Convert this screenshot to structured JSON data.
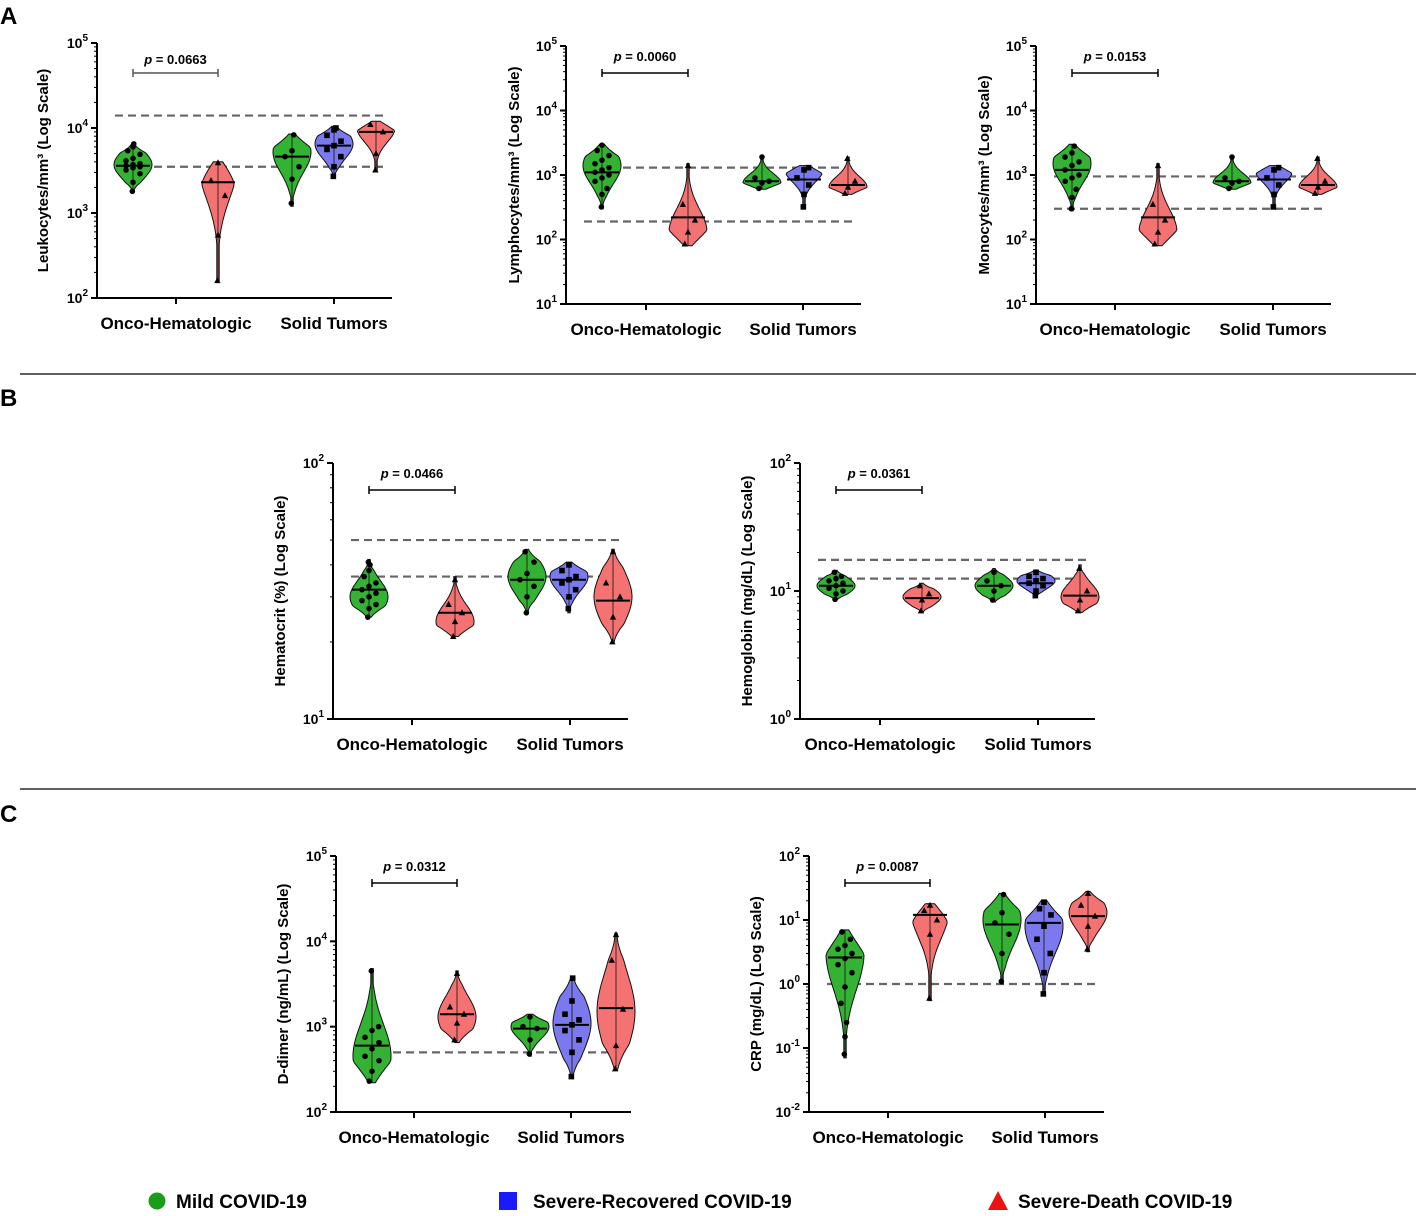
{
  "panel_letters": [
    "A",
    "B",
    "C"
  ],
  "legend": [
    {
      "label": "Mild COVID-19",
      "color": "#1a9e1a",
      "shape": "circle",
      "icon": "circle-marker-icon"
    },
    {
      "label": "Severe-Recovered COVID-19",
      "color": "#1a1aff",
      "shape": "square",
      "icon": "square-marker-icon"
    },
    {
      "label": "Severe-Death COVID-19",
      "color": "#ee1111",
      "shape": "triangle",
      "icon": "triangle-marker-icon"
    }
  ],
  "colors": {
    "mild_fill": "#33b233",
    "recovered_fill": "#7a7aee",
    "death_fill": "#f47272",
    "reference_line": "#666666"
  },
  "chart_data": [
    {
      "id": "leukocytes",
      "type": "violin",
      "panel": "A",
      "ylabel": "Leukocytes/mm³ (Log Scale)",
      "yscale": "log",
      "ylim_exp": [
        2,
        5
      ],
      "tick_exponents": [
        2,
        3,
        4,
        5
      ],
      "categories": [
        "Onco-Hematologic",
        "Solid Tumors"
      ],
      "reference_lines": [
        3500,
        14000
      ],
      "pvalue": {
        "text": "0.0663",
        "italic_only_p": true,
        "bold": false
      },
      "series": [
        {
          "name": "Mild COVID-19",
          "group": "Onco-Hematologic",
          "min": 1800,
          "max": 6500,
          "median": 3600,
          "mode": 3700,
          "points": [
            1800,
            2300,
            2900,
            3200,
            3400,
            3500,
            3600,
            3700,
            3800,
            4100,
            4400,
            4900,
            5400,
            6000,
            6500
          ]
        },
        {
          "name": "Severe-Death COVID-19",
          "group": "Onco-Hematologic",
          "min": 160,
          "max": 4000,
          "median": 2300,
          "mode": 3600,
          "points": [
            160,
            550,
            1600,
            2400,
            3900
          ]
        },
        {
          "name": "Mild COVID-19",
          "group": "Solid Tumors",
          "min": 1200,
          "max": 8500,
          "median": 4600,
          "mode": 5200,
          "points": [
            1300,
            2500,
            3500,
            4600,
            5400,
            8300
          ]
        },
        {
          "name": "Severe-Recovered COVID-19",
          "group": "Solid Tumors",
          "min": 2600,
          "max": 10500,
          "median": 6200,
          "mode": 6500,
          "points": [
            2700,
            3500,
            4600,
            5600,
            6200,
            7000,
            8200,
            9500,
            10000
          ]
        },
        {
          "name": "Severe-Death COVID-19",
          "group": "Solid Tumors",
          "min": 3100,
          "max": 12000,
          "median": 9000,
          "mode": 10000,
          "points": [
            3200,
            5000,
            9000,
            11000
          ]
        }
      ]
    },
    {
      "id": "lymphocytes",
      "type": "violin",
      "panel": "A",
      "ylabel": "Lymphocytes/mm³ (Log Scale)",
      "yscale": "log",
      "ylim_exp": [
        1,
        5
      ],
      "tick_exponents": [
        1,
        2,
        3,
        4,
        5
      ],
      "categories": [
        "Onco-Hematologic",
        "Solid Tumors"
      ],
      "reference_lines": [
        190,
        1300
      ],
      "pvalue": {
        "text": "0.0060",
        "italic_only_p": false,
        "bold": true
      },
      "series": [
        {
          "name": "Mild COVID-19",
          "group": "Onco-Hematologic",
          "min": 300,
          "max": 3000,
          "median": 1100,
          "mode": 1400,
          "points": [
            320,
            500,
            620,
            800,
            900,
            1000,
            1100,
            1200,
            1300,
            1500,
            1700,
            2000,
            2400,
            2900
          ]
        },
        {
          "name": "Severe-Death COVID-19",
          "group": "Onco-Hematologic",
          "min": 80,
          "max": 1500,
          "median": 220,
          "mode": 130,
          "points": [
            85,
            130,
            200,
            350,
            1400
          ]
        },
        {
          "name": "Mild COVID-19",
          "group": "Solid Tumors",
          "min": 600,
          "max": 2000,
          "median": 800,
          "mode": 750,
          "points": [
            620,
            750,
            800,
            900,
            1900
          ]
        },
        {
          "name": "Severe-Recovered COVID-19",
          "group": "Solid Tumors",
          "min": 300,
          "max": 1400,
          "median": 850,
          "mode": 1200,
          "points": [
            320,
            500,
            700,
            900,
            1200,
            1300
          ]
        },
        {
          "name": "Severe-Death COVID-19",
          "group": "Solid Tumors",
          "min": 500,
          "max": 1900,
          "median": 700,
          "mode": 650,
          "points": [
            520,
            650,
            800,
            1800
          ]
        }
      ]
    },
    {
      "id": "monocytes",
      "type": "violin",
      "panel": "A",
      "ylabel": "Monocytes/mm³ (Log Scale)",
      "yscale": "log",
      "ylim_exp": [
        1,
        5
      ],
      "tick_exponents": [
        1,
        2,
        3,
        4,
        5
      ],
      "categories": [
        "Onco-Hematologic",
        "Solid Tumors"
      ],
      "reference_lines": [
        300,
        950
      ],
      "pvalue": {
        "text": "0.0153",
        "italic_only_p": false,
        "bold": true
      },
      "series": [
        {
          "name": "Mild COVID-19",
          "group": "Onco-Hematologic",
          "min": 280,
          "max": 3000,
          "median": 1200,
          "mode": 1500,
          "points": [
            300,
            450,
            600,
            800,
            900,
            1000,
            1200,
            1400,
            1600,
            1900,
            2200,
            2800
          ]
        },
        {
          "name": "Severe-Death COVID-19",
          "group": "Onco-Hematologic",
          "min": 80,
          "max": 1500,
          "median": 220,
          "mode": 130,
          "points": [
            85,
            130,
            200,
            350,
            1400
          ]
        },
        {
          "name": "Mild COVID-19",
          "group": "Solid Tumors",
          "min": 600,
          "max": 2000,
          "median": 800,
          "mode": 750,
          "points": [
            620,
            750,
            800,
            900,
            1900
          ]
        },
        {
          "name": "Severe-Recovered COVID-19",
          "group": "Solid Tumors",
          "min": 300,
          "max": 1400,
          "median": 850,
          "mode": 1200,
          "points": [
            320,
            500,
            700,
            900,
            1200,
            1300
          ]
        },
        {
          "name": "Severe-Death COVID-19",
          "group": "Solid Tumors",
          "min": 500,
          "max": 1900,
          "median": 700,
          "mode": 650,
          "points": [
            520,
            650,
            800,
            1800
          ]
        }
      ]
    },
    {
      "id": "hematocrit",
      "type": "violin",
      "panel": "B",
      "ylabel": "Hematocrit (%) (Log Scale)",
      "yscale": "log",
      "ylim_exp": [
        1,
        2
      ],
      "tick_exponents": [
        1,
        2
      ],
      "categories": [
        "Onco-Hematologic",
        "Solid Tumors"
      ],
      "reference_lines": [
        36,
        50
      ],
      "pvalue": {
        "text": "0.0466",
        "italic_only_p": false,
        "bold": true
      },
      "series": [
        {
          "name": "Mild COVID-19",
          "group": "Onco-Hematologic",
          "min": 25,
          "max": 42,
          "median": 32,
          "mode": 30,
          "points": [
            25,
            27,
            28,
            29,
            30,
            31,
            32,
            33,
            34,
            36,
            38,
            40,
            41
          ]
        },
        {
          "name": "Severe-Death COVID-19",
          "group": "Onco-Hematologic",
          "min": 21,
          "max": 36,
          "median": 26,
          "mode": 24,
          "points": [
            21,
            24,
            26,
            28,
            35
          ]
        },
        {
          "name": "Mild COVID-19",
          "group": "Solid Tumors",
          "min": 26,
          "max": 46,
          "median": 35,
          "mode": 36,
          "points": [
            26,
            30,
            33,
            35,
            37,
            41,
            45
          ]
        },
        {
          "name": "Severe-Recovered COVID-19",
          "group": "Solid Tumors",
          "min": 26,
          "max": 41,
          "median": 35,
          "mode": 36,
          "points": [
            27,
            30,
            32,
            34,
            35,
            36,
            38,
            40
          ]
        },
        {
          "name": "Severe-Death COVID-19",
          "group": "Solid Tumors",
          "min": 20,
          "max": 46,
          "median": 29,
          "mode": 30,
          "points": [
            20,
            25,
            30,
            34,
            45
          ]
        }
      ]
    },
    {
      "id": "hemoglobin",
      "type": "violin",
      "panel": "B",
      "ylabel": "Hemoglobin (mg/dL) (Log Scale)",
      "yscale": "log",
      "ylim_exp": [
        0,
        2
      ],
      "tick_exponents": [
        0,
        1,
        2
      ],
      "categories": [
        "Onco-Hematologic",
        "Solid Tumors"
      ],
      "reference_lines": [
        12.5,
        17.5
      ],
      "pvalue": {
        "text": "0.0361",
        "italic_only_p": false,
        "bold": true
      },
      "series": [
        {
          "name": "Mild COVID-19",
          "group": "Onco-Hematologic",
          "min": 8.5,
          "max": 14.5,
          "median": 11,
          "mode": 11,
          "points": [
            8.6,
            9.5,
            10,
            10.5,
            11,
            11.5,
            12,
            12.5,
            13,
            14
          ]
        },
        {
          "name": "Severe-Death COVID-19",
          "group": "Onco-Hematologic",
          "min": 6.8,
          "max": 11.5,
          "median": 8.8,
          "mode": 9,
          "points": [
            7,
            8.5,
            9.5,
            11
          ]
        },
        {
          "name": "Mild COVID-19",
          "group": "Solid Tumors",
          "min": 8.2,
          "max": 15,
          "median": 11,
          "mode": 11,
          "points": [
            8.5,
            10,
            11,
            12,
            14
          ]
        },
        {
          "name": "Severe-Recovered COVID-19",
          "group": "Solid Tumors",
          "min": 9,
          "max": 14.5,
          "median": 11.5,
          "mode": 12,
          "points": [
            9.2,
            10,
            11,
            11.5,
            12,
            12.5,
            13,
            14
          ]
        },
        {
          "name": "Severe-Death COVID-19",
          "group": "Solid Tumors",
          "min": 6.8,
          "max": 16,
          "median": 9.2,
          "mode": 9,
          "points": [
            7,
            8.5,
            10,
            15
          ]
        }
      ]
    },
    {
      "id": "d_dimer",
      "type": "violin",
      "panel": "C",
      "ylabel": "D-dimer (ng/mL) (Log Scale)",
      "yscale": "log",
      "ylim_exp": [
        2,
        5
      ],
      "tick_exponents": [
        2,
        3,
        4,
        5
      ],
      "categories": [
        "Onco-Hematologic",
        "Solid Tumors"
      ],
      "reference_lines": [
        500
      ],
      "pvalue": {
        "text": "0.0312",
        "italic_only_p": false,
        "bold": true
      },
      "series": [
        {
          "name": "Mild COVID-19",
          "group": "Onco-Hematologic",
          "min": 220,
          "max": 4800,
          "median": 600,
          "mode": 450,
          "points": [
            230,
            300,
            400,
            450,
            550,
            650,
            750,
            900,
            1000,
            4500
          ]
        },
        {
          "name": "Severe-Death COVID-19",
          "group": "Onco-Hematologic",
          "min": 650,
          "max": 4500,
          "median": 1400,
          "mode": 1300,
          "points": [
            700,
            1100,
            1400,
            1700,
            4200
          ]
        },
        {
          "name": "Mild COVID-19",
          "group": "Solid Tumors",
          "min": 450,
          "max": 1400,
          "median": 950,
          "mode": 1000,
          "points": [
            480,
            700,
            950,
            1000,
            1300
          ]
        },
        {
          "name": "Severe-Recovered COVID-19",
          "group": "Solid Tumors",
          "min": 250,
          "max": 3800,
          "median": 1050,
          "mode": 1100,
          "points": [
            260,
            500,
            700,
            900,
            1050,
            1200,
            1400,
            2000,
            3700
          ]
        },
        {
          "name": "Severe-Death COVID-19",
          "group": "Solid Tumors",
          "min": 310,
          "max": 12500,
          "median": 1650,
          "mode": 1500,
          "points": [
            320,
            600,
            1600,
            6000,
            12000
          ]
        }
      ]
    },
    {
      "id": "crp",
      "type": "violin",
      "panel": "C",
      "ylabel": "CRP (mg/dL) (Log Scale)",
      "yscale": "log",
      "ylim_exp": [
        -2,
        2
      ],
      "tick_exponents": [
        -2,
        -1,
        0,
        1,
        2
      ],
      "categories": [
        "Onco-Hematologic",
        "Solid Tumors"
      ],
      "reference_lines": [
        1
      ],
      "pvalue": {
        "text": "0.0087",
        "italic_only_p": false,
        "bold": true
      },
      "series": [
        {
          "name": "Mild COVID-19",
          "group": "Onco-Hematologic",
          "min": 0.07,
          "max": 7,
          "median": 2.6,
          "mode": 3,
          "points": [
            0.08,
            0.15,
            0.25,
            0.5,
            0.9,
            1.5,
            2,
            2.5,
            3,
            3.5,
            4,
            5,
            6.5
          ]
        },
        {
          "name": "Severe-Death COVID-19",
          "group": "Onco-Hematologic",
          "min": 0.55,
          "max": 18,
          "median": 12,
          "mode": 14,
          "points": [
            0.6,
            6,
            10,
            14,
            17
          ]
        },
        {
          "name": "Mild COVID-19",
          "group": "Solid Tumors",
          "min": 1,
          "max": 26,
          "median": 8.5,
          "mode": 10,
          "points": [
            1.1,
            3,
            6,
            9,
            13,
            25
          ]
        },
        {
          "name": "Severe-Recovered COVID-19",
          "group": "Solid Tumors",
          "min": 0.65,
          "max": 20,
          "median": 9,
          "mode": 8,
          "points": [
            0.7,
            1.5,
            3,
            5,
            8,
            12,
            15,
            19
          ]
        },
        {
          "name": "Severe-Death COVID-19",
          "group": "Solid Tumors",
          "min": 3.2,
          "max": 28,
          "median": 11.5,
          "mode": 13,
          "points": [
            3.5,
            8,
            11.5,
            17,
            26
          ]
        }
      ]
    }
  ]
}
